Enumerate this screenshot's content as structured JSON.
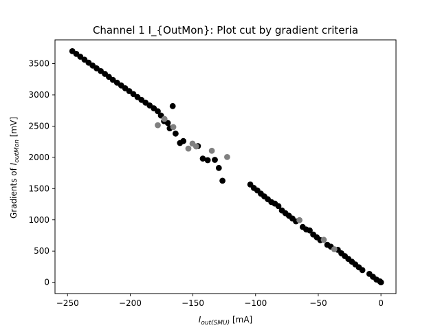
{
  "chart_data": {
    "type": "scatter",
    "title": "Channel 1 I_{OutMon}: Plot cut by gradient criteria",
    "xlabel": {
      "var": "I",
      "sub": "out(SMU)",
      "unit": " [mA]"
    },
    "ylabel": {
      "prefix": "Gradients of ",
      "var": "I",
      "sub": "outMon",
      "unit": " [mV]"
    },
    "xlim": [
      -260,
      12
    ],
    "ylim": [
      -180,
      3880
    ],
    "xticks": [
      -250,
      -200,
      -150,
      -100,
      -50,
      0
    ],
    "yticks": [
      0,
      500,
      1000,
      1500,
      2000,
      2500,
      3000,
      3500
    ],
    "grid": false,
    "series": [
      {
        "color": "#000000",
        "x": [
          -246.2,
          -243,
          -239.8,
          -236.5,
          -233.2,
          -230,
          -226.8,
          -223.5,
          -220.2,
          -217,
          -213.8,
          -210.5,
          -207.2,
          -204,
          -200.8,
          -197.5,
          -194.2,
          -191,
          -187.8,
          -184.5,
          -181.2,
          -178,
          -175.5,
          -173,
          -170,
          -168.5,
          -166.1,
          -163.8,
          -160.3,
          -157.6,
          -146,
          -142.1,
          -138.2,
          -132.5,
          -129.3,
          -126.4,
          -104.2,
          -101.4,
          -98.6,
          -95.8,
          -93,
          -90.2,
          -87.4,
          -84.6,
          -81.8,
          -79,
          -76.2,
          -73.4,
          -70.6,
          -67.8,
          -62.4,
          -59.6,
          -56.8,
          -54,
          -51.2,
          -48.4,
          -42.8,
          -40,
          -34.4,
          -31.6,
          -28.8,
          -26,
          -23.2,
          -20.4,
          -17.6,
          -14.8,
          -9.2,
          -6.4,
          -3.6,
          -0.8,
          0
        ],
        "y": [
          3700,
          3655,
          3610,
          3563,
          3515,
          3470,
          3425,
          3380,
          3335,
          3288,
          3240,
          3195,
          3150,
          3105,
          3060,
          3013,
          2965,
          2920,
          2875,
          2830,
          2785,
          2738,
          2670,
          2580,
          2550,
          2465,
          2820,
          2380,
          2230,
          2260,
          2180,
          1980,
          1955,
          1960,
          1830,
          1625,
          1565,
          1510,
          1470,
          1420,
          1375,
          1330,
          1285,
          1260,
          1220,
          1150,
          1105,
          1065,
          1020,
          975,
          885,
          845,
          830,
          765,
          720,
          675,
          600,
          570,
          520,
          465,
          420,
          375,
          330,
          285,
          240,
          195,
          135,
          90,
          45,
          15,
          0
        ]
      },
      {
        "color": "#808080",
        "x": [
          -178,
          -172.7,
          -165.6,
          -153.6,
          -150.3,
          -147.4,
          -134.9,
          -122.7,
          -65,
          -45.6,
          -37.2
        ],
        "y": [
          2515,
          2615,
          2485,
          2140,
          2220,
          2175,
          2105,
          2005,
          995,
          680,
          530
        ]
      }
    ]
  }
}
